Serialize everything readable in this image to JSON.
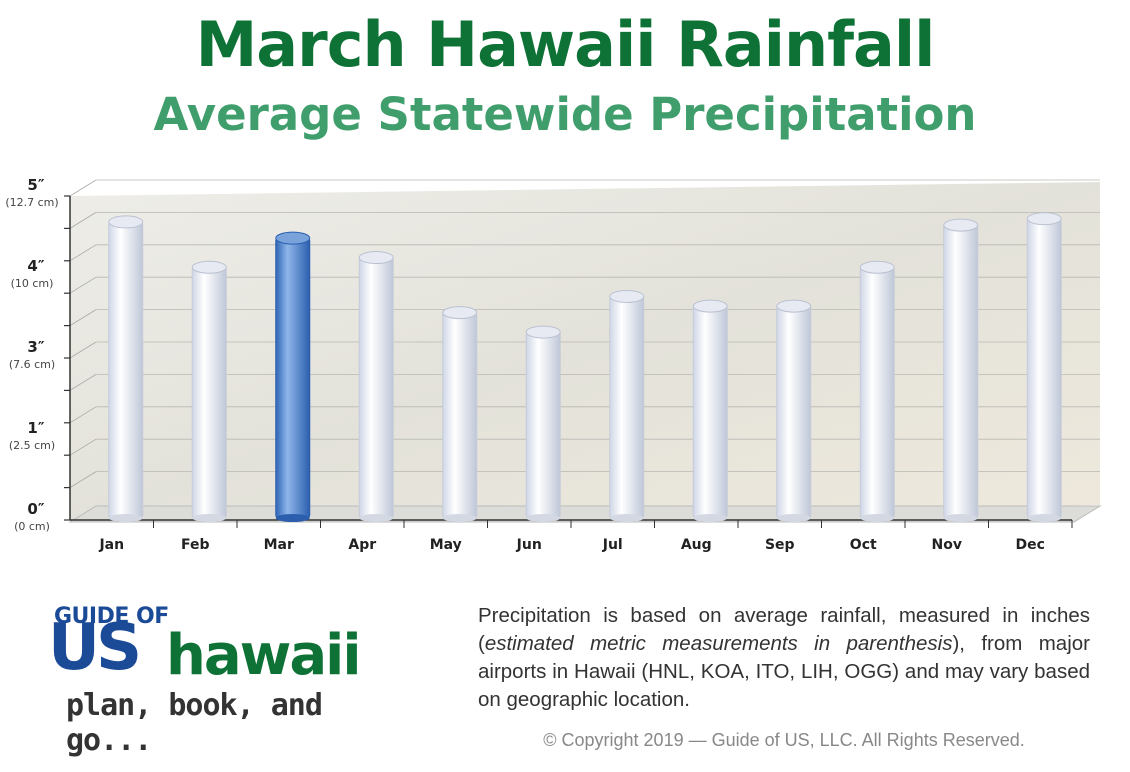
{
  "title": "March Hawaii Rainfall",
  "subtitle": "Average Statewide Precipitation",
  "chart_data": {
    "type": "bar",
    "categories": [
      "Jan",
      "Feb",
      "Mar",
      "Apr",
      "May",
      "Jun",
      "Jul",
      "Aug",
      "Sep",
      "Oct",
      "Nov",
      "Dec"
    ],
    "values": [
      4.6,
      3.9,
      4.35,
      4.05,
      3.2,
      2.9,
      3.45,
      3.3,
      3.3,
      3.9,
      4.55,
      4.65
    ],
    "highlight": "Mar",
    "y_ticks": [
      {
        "label": "5″",
        "sub": "(12.7 cm)"
      },
      {
        "label": "4″",
        "sub": "(10 cm)"
      },
      {
        "label": "3″",
        "sub": "(7.6 cm)"
      },
      {
        "label": "1″",
        "sub": "(2.5 cm)"
      },
      {
        "label": "0″",
        "sub": "(0 cm)"
      }
    ],
    "ylim": [
      0,
      5
    ],
    "grid": true,
    "colors": {
      "bar": "#f4f6fb",
      "highlight": "#4f86d2",
      "background": "#e9e7e0"
    }
  },
  "note": {
    "part1": "Precipitation is based on average rainfall, measured in inches (",
    "italic": "estimated metric measurements in parenthesis",
    "part2": "), from major airports in Hawaii (HNL, KOA, ITO, LIH, OGG) and may vary based on geographic location."
  },
  "copyright": "© Copyright 2019 — Guide of US, LLC. All Rights Reserved.",
  "logo": {
    "top": "GUIDE OF",
    "us": "US",
    "hawaii": "hawaii",
    "tagline": "plan, book, and go..."
  }
}
